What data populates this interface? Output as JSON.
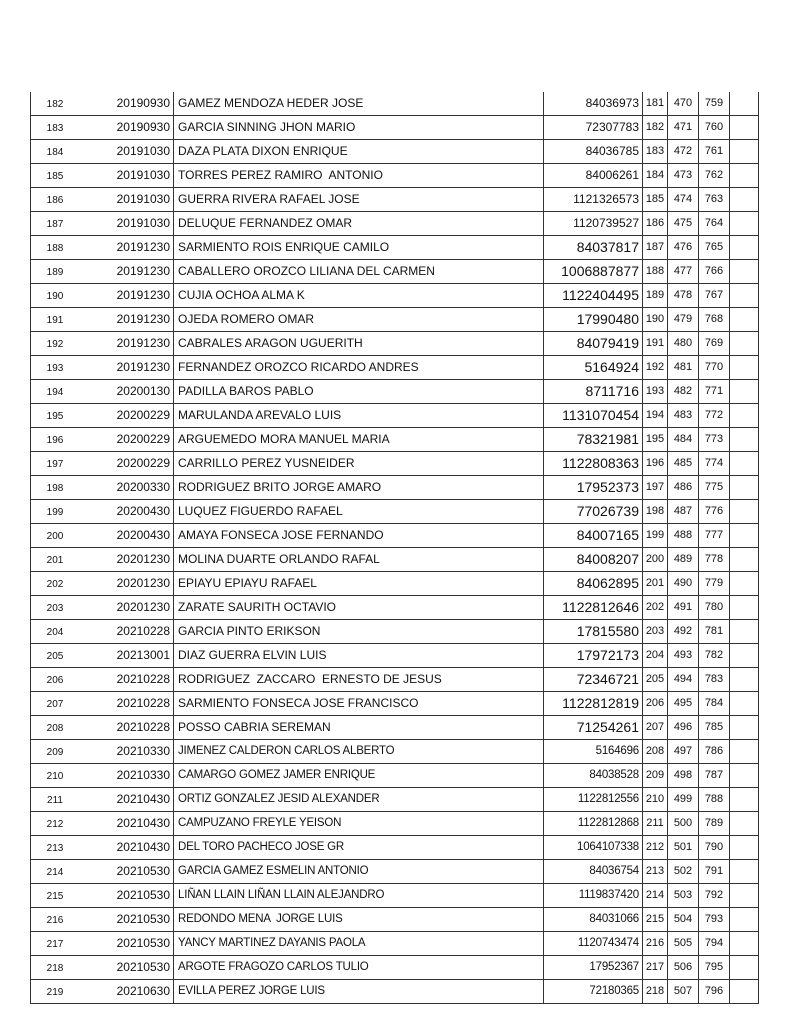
{
  "table": {
    "rows": [
      {
        "n": "182",
        "date": "20190930",
        "name": "GAMEZ MENDOZA HEDER JOSE",
        "id": "84036973",
        "a": "181",
        "b": "470",
        "c": "759",
        "style": ""
      },
      {
        "n": "183",
        "date": "20190930",
        "name": "GARCIA SINNING JHON MARIO",
        "id": "72307783",
        "a": "182",
        "b": "471",
        "c": "760",
        "style": ""
      },
      {
        "n": "184",
        "date": "20191030",
        "name": "DAZA PLATA DIXON ENRIQUE",
        "id": "84036785",
        "a": "183",
        "b": "472",
        "c": "761",
        "style": ""
      },
      {
        "n": "185",
        "date": "20191030",
        "name": "TORRES PEREZ RAMIRO  ANTONIO",
        "id": "84006261",
        "a": "184",
        "b": "473",
        "c": "762",
        "style": ""
      },
      {
        "n": "186",
        "date": "20191030",
        "name": "GUERRA RIVERA RAFAEL JOSE",
        "id": "1121326573",
        "a": "185",
        "b": "474",
        "c": "763",
        "style": ""
      },
      {
        "n": "187",
        "date": "20191030",
        "name": "DELUQUE FERNANDEZ OMAR",
        "id": "1120739527",
        "a": "186",
        "b": "475",
        "c": "764",
        "style": ""
      },
      {
        "n": "188",
        "date": "20191230",
        "name": "SARMIENTO ROIS ENRIQUE CAMILO",
        "id": "84037817",
        "a": "187",
        "b": "476",
        "c": "765",
        "style": "big"
      },
      {
        "n": "189",
        "date": "20191230",
        "name": "CABALLERO OROZCO LILIANA DEL CARMEN",
        "id": "1006887877",
        "a": "188",
        "b": "477",
        "c": "766",
        "style": "big"
      },
      {
        "n": "190",
        "date": "20191230",
        "name": "CUJIA OCHOA ALMA K",
        "id": "1122404495",
        "a": "189",
        "b": "478",
        "c": "767",
        "style": "big"
      },
      {
        "n": "191",
        "date": "20191230",
        "name": "OJEDA ROMERO OMAR",
        "id": "17990480",
        "a": "190",
        "b": "479",
        "c": "768",
        "style": "big"
      },
      {
        "n": "192",
        "date": "20191230",
        "name": "CABRALES ARAGON UGUERITH",
        "id": "84079419",
        "a": "191",
        "b": "480",
        "c": "769",
        "style": "big"
      },
      {
        "n": "193",
        "date": "20191230",
        "name": "FERNANDEZ OROZCO RICARDO ANDRES",
        "id": "5164924",
        "a": "192",
        "b": "481",
        "c": "770",
        "style": "big"
      },
      {
        "n": "194",
        "date": "20200130",
        "name": "PADILLA BAROS PABLO",
        "id": "8711716",
        "a": "193",
        "b": "482",
        "c": "771",
        "style": "big"
      },
      {
        "n": "195",
        "date": "20200229",
        "name": "MARULANDA AREVALO LUIS",
        "id": "1131070454",
        "a": "194",
        "b": "483",
        "c": "772",
        "style": "big"
      },
      {
        "n": "196",
        "date": "20200229",
        "name": "ARGUEMEDO MORA MANUEL MARIA",
        "id": "78321981",
        "a": "195",
        "b": "484",
        "c": "773",
        "style": "big"
      },
      {
        "n": "197",
        "date": "20200229",
        "name": "CARRILLO PEREZ YUSNEIDER",
        "id": "1122808363",
        "a": "196",
        "b": "485",
        "c": "774",
        "style": "big"
      },
      {
        "n": "198",
        "date": "20200330",
        "name": "RODRIGUEZ BRITO JORGE AMARO",
        "id": "17952373",
        "a": "197",
        "b": "486",
        "c": "775",
        "style": "big"
      },
      {
        "n": "199",
        "date": "20200430",
        "name": "LUQUEZ FIGUERDO RAFAEL",
        "id": "77026739",
        "a": "198",
        "b": "487",
        "c": "776",
        "style": "big"
      },
      {
        "n": "200",
        "date": "20200430",
        "name": "AMAYA FONSECA JOSE FERNANDO",
        "id": "84007165",
        "a": "199",
        "b": "488",
        "c": "777",
        "style": "big"
      },
      {
        "n": "201",
        "date": "20201230",
        "name": "MOLINA DUARTE ORLANDO RAFAL",
        "id": "84008207",
        "a": "200",
        "b": "489",
        "c": "778",
        "style": "big"
      },
      {
        "n": "202",
        "date": "20201230",
        "name": "EPIAYU EPIAYU RAFAEL",
        "id": "84062895",
        "a": "201",
        "b": "490",
        "c": "779",
        "style": "big"
      },
      {
        "n": "203",
        "date": "20201230",
        "name": "ZARATE SAURITH OCTAVIO",
        "id": "1122812646",
        "a": "202",
        "b": "491",
        "c": "780",
        "style": "big"
      },
      {
        "n": "204",
        "date": "20210228",
        "name": "GARCIA PINTO ERIKSON",
        "id": "17815580",
        "a": "203",
        "b": "492",
        "c": "781",
        "style": "big"
      },
      {
        "n": "205",
        "date": "20213001",
        "name": "DIAZ GUERRA ELVIN LUIS",
        "id": "17972173",
        "a": "204",
        "b": "493",
        "c": "782",
        "style": "big"
      },
      {
        "n": "206",
        "date": "20210228",
        "name": "RODRIGUEZ  ZACCARO  ERNESTO DE JESUS",
        "id": "72346721",
        "a": "205",
        "b": "494",
        "c": "783",
        "style": "big"
      },
      {
        "n": "207",
        "date": "20210228",
        "name": "SARMIENTO FONSECA JOSE FRANCISCO",
        "id": "1122812819",
        "a": "206",
        "b": "495",
        "c": "784",
        "style": "big"
      },
      {
        "n": "208",
        "date": "20210228",
        "name": "POSSO CABRIA SEREMAN",
        "id": "71254261",
        "a": "207",
        "b": "496",
        "c": "785",
        "style": "big"
      },
      {
        "n": "209",
        "date": "20210330",
        "name": "JIMENEZ CALDERON CARLOS ALBERTO",
        "id": "5164696",
        "a": "208",
        "b": "497",
        "c": "786",
        "style": "alt"
      },
      {
        "n": "210",
        "date": "20210330",
        "name": "CAMARGO GOMEZ JAMER ENRIQUE",
        "id": "84038528",
        "a": "209",
        "b": "498",
        "c": "787",
        "style": "alt"
      },
      {
        "n": "211",
        "date": "20210430",
        "name": "ORTIZ GONZALEZ JESID ALEXANDER",
        "id": "1122812556",
        "a": "210",
        "b": "499",
        "c": "788",
        "style": "alt"
      },
      {
        "n": "212",
        "date": "20210430",
        "name": "CAMPUZANO FREYLE YEISON",
        "id": "1122812868",
        "a": "211",
        "b": "500",
        "c": "789",
        "style": "alt"
      },
      {
        "n": "213",
        "date": "20210430",
        "name": "DEL TORO PACHECO JOSE GR",
        "id": "1064107338",
        "a": "212",
        "b": "501",
        "c": "790",
        "style": "alt"
      },
      {
        "n": "214",
        "date": "20210530",
        "name": "GARCIA GAMEZ ESMELIN ANTONIO",
        "id": "84036754",
        "a": "213",
        "b": "502",
        "c": "791",
        "style": "alt"
      },
      {
        "n": "215",
        "date": "20210530",
        "name": "LIÑAN LLAIN LIÑAN LLAIN ALEJANDRO",
        "id": "1119837420",
        "a": "214",
        "b": "503",
        "c": "792",
        "style": "alt"
      },
      {
        "n": "216",
        "date": "20210530",
        "name": "REDONDO MENA  JORGE LUIS",
        "id": "84031066",
        "a": "215",
        "b": "504",
        "c": "793",
        "style": "alt"
      },
      {
        "n": "217",
        "date": "20210530",
        "name": "YANCY MARTINEZ DAYANIS PAOLA",
        "id": "1120743474",
        "a": "216",
        "b": "505",
        "c": "794",
        "style": "alt"
      },
      {
        "n": "218",
        "date": "20210530",
        "name": "ARGOTE FRAGOZO CARLOS TULIO",
        "id": "17952367",
        "a": "217",
        "b": "506",
        "c": "795",
        "style": "alt"
      },
      {
        "n": "219",
        "date": "20210630",
        "name": "EVILLA PEREZ JORGE LUIS",
        "id": "72180365",
        "a": "218",
        "b": "507",
        "c": "796",
        "style": "alt"
      }
    ]
  }
}
